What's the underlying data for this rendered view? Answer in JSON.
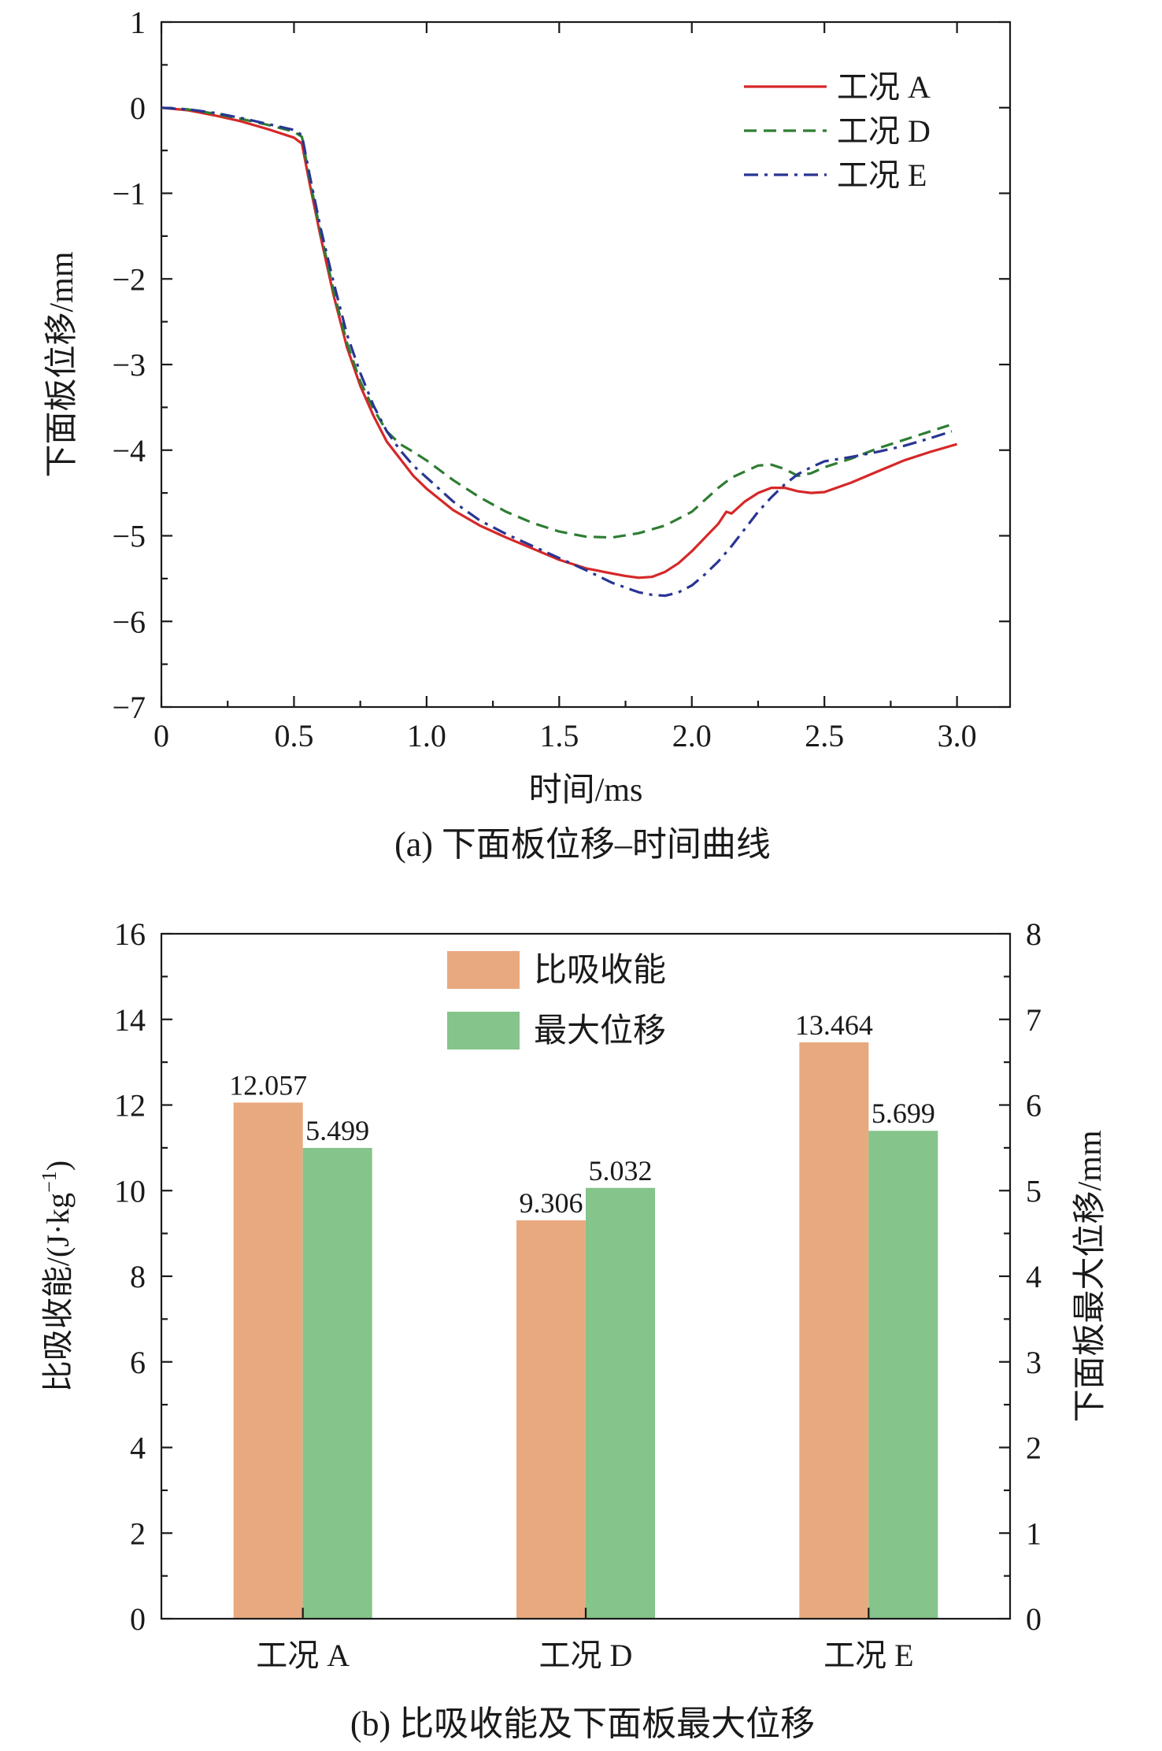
{
  "chart_data": [
    {
      "type": "line",
      "caption": "(a) 下面板位移–时间曲线",
      "xlabel": "时间/ms",
      "ylabel": "下面板位移/mm",
      "xlim": [
        0,
        3.2
      ],
      "ylim": [
        -7,
        1
      ],
      "xticks": [
        "0",
        "0.5",
        "1.0",
        "1.5",
        "2.0",
        "2.5",
        "3.0"
      ],
      "xtick_values": [
        0,
        0.5,
        1.0,
        1.5,
        2.0,
        2.5,
        3.0
      ],
      "yticks": [
        "1",
        "0",
        "−1",
        "−2",
        "−3",
        "−4",
        "−5",
        "−6",
        "−7"
      ],
      "ytick_values": [
        1,
        0,
        -1,
        -2,
        -3,
        -4,
        -5,
        -6,
        -7
      ],
      "legend_position": "top-right",
      "series": [
        {
          "name": "工况 A",
          "color": "#d62728",
          "dash": "solid",
          "x": [
            0,
            0.1,
            0.2,
            0.3,
            0.4,
            0.5,
            0.53,
            0.56,
            0.6,
            0.65,
            0.7,
            0.75,
            0.8,
            0.85,
            0.9,
            0.95,
            1.0,
            1.1,
            1.2,
            1.3,
            1.4,
            1.5,
            1.6,
            1.7,
            1.75,
            1.8,
            1.85,
            1.9,
            1.95,
            2.0,
            2.05,
            2.1,
            2.13,
            2.15,
            2.2,
            2.25,
            2.3,
            2.35,
            2.4,
            2.45,
            2.5,
            2.6,
            2.7,
            2.8,
            2.9,
            3.0
          ],
          "y": [
            0,
            -0.03,
            -0.09,
            -0.16,
            -0.25,
            -0.35,
            -0.42,
            -0.9,
            -1.5,
            -2.2,
            -2.8,
            -3.25,
            -3.6,
            -3.9,
            -4.1,
            -4.3,
            -4.45,
            -4.7,
            -4.88,
            -5.02,
            -5.15,
            -5.28,
            -5.38,
            -5.44,
            -5.47,
            -5.49,
            -5.48,
            -5.42,
            -5.32,
            -5.18,
            -5.02,
            -4.86,
            -4.72,
            -4.74,
            -4.6,
            -4.5,
            -4.44,
            -4.44,
            -4.48,
            -4.5,
            -4.49,
            -4.38,
            -4.25,
            -4.12,
            -4.02,
            -3.93
          ]
        },
        {
          "name": "工况 D",
          "color": "#2e7d32",
          "dash": "dashed",
          "x": [
            0,
            0.1,
            0.2,
            0.3,
            0.4,
            0.5,
            0.53,
            0.56,
            0.6,
            0.65,
            0.7,
            0.75,
            0.8,
            0.85,
            0.9,
            0.95,
            1.0,
            1.1,
            1.2,
            1.3,
            1.4,
            1.5,
            1.6,
            1.7,
            1.8,
            1.9,
            2.0,
            2.05,
            2.1,
            2.15,
            2.2,
            2.25,
            2.3,
            2.35,
            2.4,
            2.45,
            2.5,
            2.6,
            2.7,
            2.8,
            2.9,
            2.97
          ],
          "y": [
            0,
            -0.02,
            -0.07,
            -0.13,
            -0.2,
            -0.28,
            -0.34,
            -0.85,
            -1.45,
            -2.15,
            -2.75,
            -3.2,
            -3.52,
            -3.78,
            -3.93,
            -4.02,
            -4.12,
            -4.35,
            -4.55,
            -4.72,
            -4.85,
            -4.95,
            -5.01,
            -5.02,
            -4.97,
            -4.88,
            -4.72,
            -4.58,
            -4.44,
            -4.32,
            -4.25,
            -4.18,
            -4.17,
            -4.22,
            -4.3,
            -4.27,
            -4.2,
            -4.1,
            -3.98,
            -3.88,
            -3.78,
            -3.71
          ]
        },
        {
          "name": "工况 E",
          "color": "#283593",
          "dash": "dashdot",
          "x": [
            0,
            0.1,
            0.2,
            0.3,
            0.4,
            0.5,
            0.53,
            0.56,
            0.6,
            0.65,
            0.7,
            0.75,
            0.8,
            0.85,
            0.9,
            0.95,
            1.0,
            1.1,
            1.2,
            1.3,
            1.4,
            1.5,
            1.6,
            1.7,
            1.8,
            1.85,
            1.9,
            1.95,
            2.0,
            2.05,
            2.1,
            2.15,
            2.2,
            2.25,
            2.3,
            2.35,
            2.4,
            2.45,
            2.5,
            2.6,
            2.7,
            2.8,
            2.9,
            2.98
          ],
          "y": [
            0,
            -0.02,
            -0.06,
            -0.12,
            -0.19,
            -0.26,
            -0.32,
            -0.8,
            -1.4,
            -2.05,
            -2.65,
            -3.1,
            -3.48,
            -3.78,
            -4.0,
            -4.18,
            -4.32,
            -4.6,
            -4.82,
            -4.98,
            -5.12,
            -5.26,
            -5.4,
            -5.55,
            -5.66,
            -5.69,
            -5.7,
            -5.66,
            -5.58,
            -5.45,
            -5.3,
            -5.12,
            -4.92,
            -4.72,
            -4.55,
            -4.4,
            -4.28,
            -4.2,
            -4.13,
            -4.08,
            -4.02,
            -3.95,
            -3.86,
            -3.78
          ]
        }
      ]
    },
    {
      "type": "bar",
      "caption": "(b) 比吸收能及下面板最大位移",
      "categories": [
        "工况 A",
        "工况 D",
        "工况 E"
      ],
      "ylabel": "比吸收能/(J·kg⁻¹)",
      "ylabel_main": "比吸收能/(J·kg",
      "ylabel_sup": "−1",
      "ylabel_close": ")",
      "y2label": "下面板最大位移/mm",
      "ylim": [
        0,
        16
      ],
      "y2lim": [
        0,
        8
      ],
      "yticks": [
        "0",
        "2",
        "4",
        "6",
        "8",
        "10",
        "12",
        "14",
        "16"
      ],
      "y2ticks": [
        "0",
        "1",
        "2",
        "3",
        "4",
        "5",
        "6",
        "7",
        "8"
      ],
      "legend_position": "top-center",
      "series": [
        {
          "name": "比吸收能",
          "axis": "left",
          "color": "#e8a97f",
          "values": [
            12.057,
            9.306,
            13.464
          ],
          "labels": [
            "12.057",
            "9.306",
            "13.464"
          ]
        },
        {
          "name": "最大位移",
          "axis": "right",
          "color": "#85c48a",
          "values": [
            5.499,
            5.032,
            5.699
          ],
          "labels": [
            "5.499",
            "5.032",
            "5.699"
          ]
        }
      ]
    }
  ]
}
